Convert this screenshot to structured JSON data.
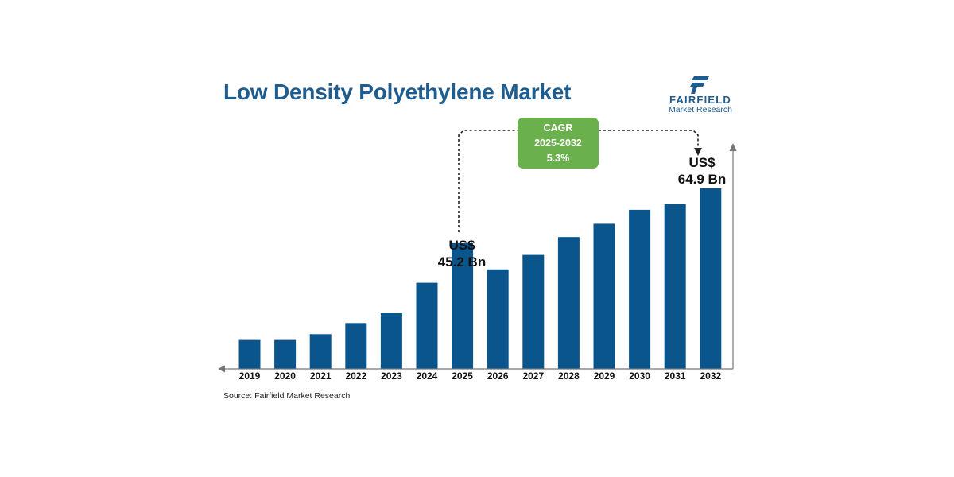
{
  "brand": {
    "name": "FAIRFIELD",
    "tagline": "Market Research",
    "color": "#1f5c8f",
    "icon": "fairfield-logo-icon"
  },
  "chart_data": {
    "type": "bar",
    "title": "Low Density Polyethylene Market",
    "categories": [
      "2019",
      "2020",
      "2021",
      "2022",
      "2023",
      "2024",
      "2025",
      "2026",
      "2027",
      "2028",
      "2029",
      "2030",
      "2031",
      "2032"
    ],
    "values": [
      10.4,
      10.4,
      12.5,
      16.5,
      20.0,
      31.0,
      45.2,
      35.8,
      41.0,
      47.4,
      52.2,
      57.2,
      59.3,
      64.9
    ],
    "ylim": [
      0,
      64.9
    ],
    "bar_color": "#0a568c",
    "grid": false,
    "annotations": [
      {
        "category": "2025",
        "line1": "US$",
        "line2": "45.2 Bn"
      },
      {
        "category": "2032",
        "line1": "US$",
        "line2": "64.9 Bn"
      }
    ],
    "cagr": {
      "label": "CAGR",
      "period": "2025-2032",
      "value": "5.3%",
      "color": "#6ab04c"
    }
  },
  "source": "Source: Fairfield Market Research"
}
